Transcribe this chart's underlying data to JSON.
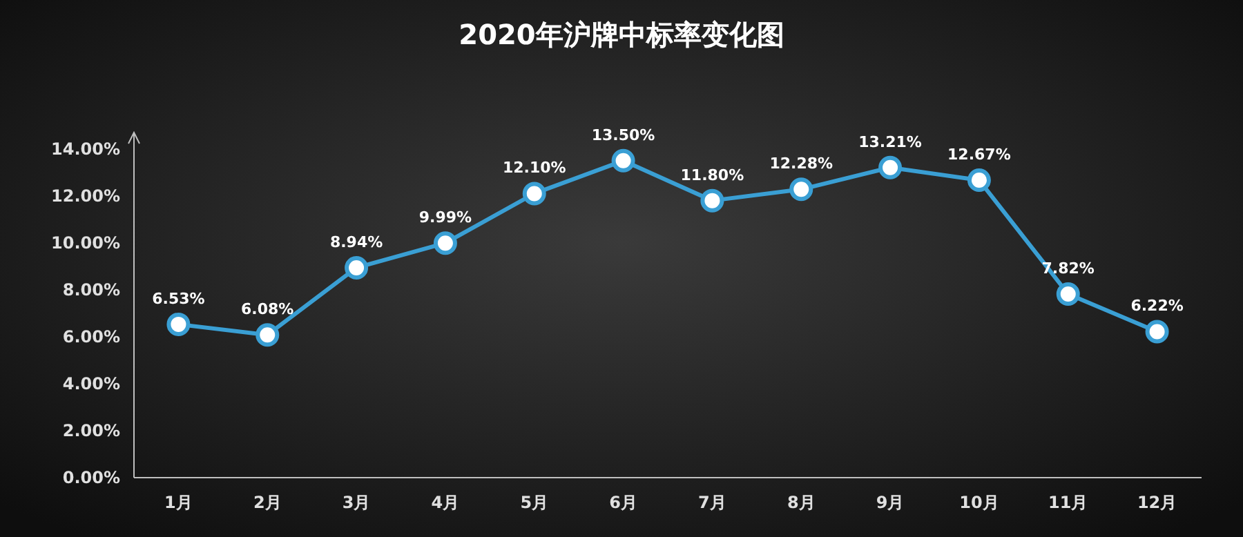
{
  "chart_data": {
    "type": "line",
    "title": "2020年沪牌中标率变化图",
    "categories": [
      "1月",
      "2月",
      "3月",
      "4月",
      "5月",
      "6月",
      "7月",
      "8月",
      "9月",
      "10月",
      "11月",
      "12月"
    ],
    "values": [
      6.53,
      6.08,
      8.94,
      9.99,
      12.1,
      13.5,
      11.8,
      12.28,
      13.21,
      12.67,
      7.82,
      6.22
    ],
    "value_labels": [
      "6.53%",
      "6.08%",
      "8.94%",
      "9.99%",
      "12.10%",
      "13.50%",
      "11.80%",
      "12.28%",
      "13.21%",
      "12.67%",
      "7.82%",
      "6.22%"
    ],
    "color": "#3a9fd4",
    "marker": "circle",
    "ylim": [
      0,
      14.7
    ],
    "yticks": [
      {
        "value": 0,
        "label": "0.00%"
      },
      {
        "value": 2,
        "label": "2.00%"
      },
      {
        "value": 4,
        "label": "4.00%"
      },
      {
        "value": 6,
        "label": "6.00%"
      },
      {
        "value": 8,
        "label": "8.00%"
      },
      {
        "value": 10,
        "label": "10.00%"
      },
      {
        "value": 12,
        "label": "12.00%"
      },
      {
        "value": 14,
        "label": "14.00%"
      }
    ]
  }
}
